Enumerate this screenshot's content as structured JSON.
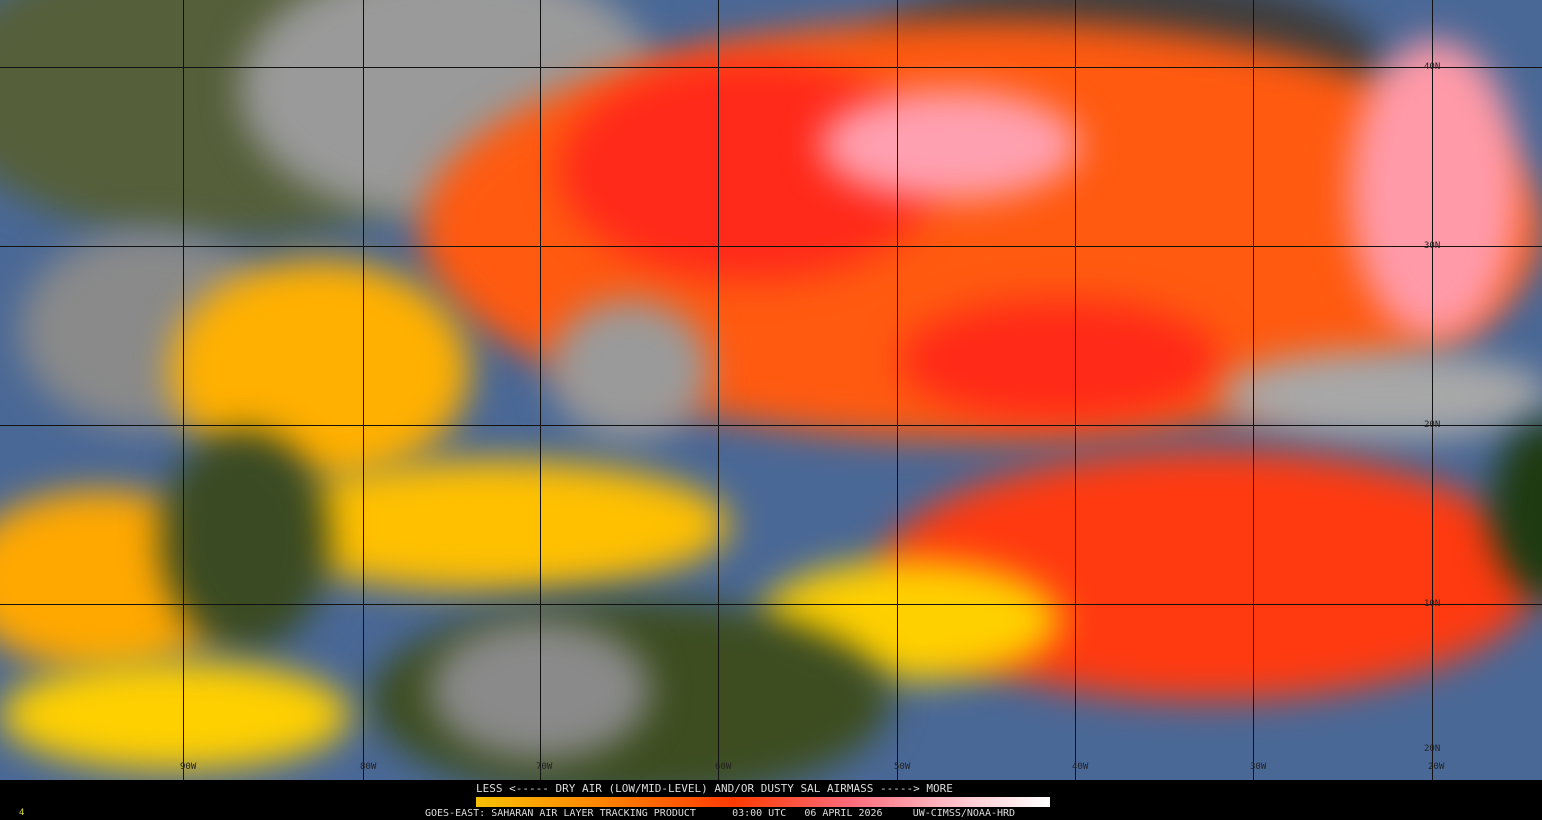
{
  "product": {
    "legend_caption": "LESS <----- DRY AIR (LOW/MID-LEVEL) AND/OR DUSTY SAL AIRMASS -----> MORE",
    "footer": {
      "satellite_product": "GOES-EAST: SAHARAN AIR LAYER TRACKING PRODUCT",
      "time": "03:00 UTC",
      "date": "06 APRIL 2026",
      "credit": "UW-CIMSS/NOAA-HRD"
    },
    "corner_mark": "4",
    "colorbar_colors": [
      "#f7c000",
      "#ff8a00",
      "#ff3a00",
      "#ff6a7a",
      "#ffc8d0",
      "#ffffff"
    ]
  },
  "map": {
    "latitude_labels": [
      "40N",
      "30N",
      "20N",
      "10N",
      "20N"
    ],
    "longitude_labels": [
      "90W",
      "80W",
      "70W",
      "60W",
      "50W",
      "40W",
      "30W",
      "20W"
    ],
    "colors": {
      "ocean": "#4a6896",
      "land": "#2a3d1a",
      "cloud": "#b0b0b0",
      "dust_low": "#ffd000",
      "dust_mid": "#ff7a00",
      "dust_high": "#ff2a1a",
      "dust_max": "#ffb0c0"
    }
  }
}
